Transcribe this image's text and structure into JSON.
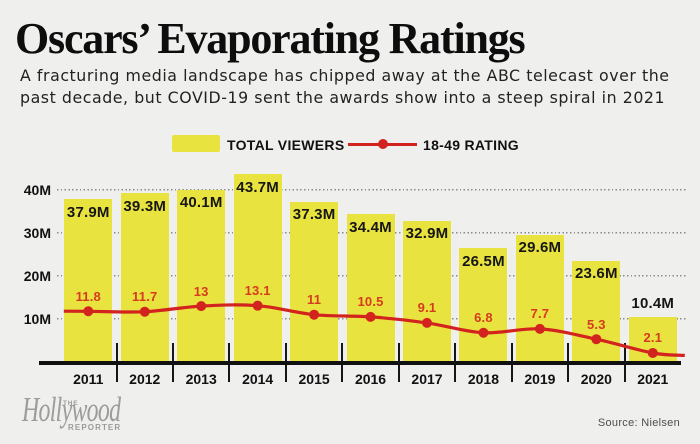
{
  "theme": {
    "background": "#efefee",
    "bar_color": "#e8e33e",
    "line_color": "#d2231e",
    "line_label_color": "#d63b1f",
    "text_color": "#111111",
    "grid_color": "#8f8f8f",
    "logo_color": "#9c9c9c"
  },
  "header": {
    "title": "Oscars’ Evaporating Ratings",
    "subtitle_line1": "A fracturing media landscape has chipped away at the ABC telecast over the",
    "subtitle_line2": "past decade, but COVID-19 sent the awards show into a steep spiral in 2021"
  },
  "legend": {
    "bars_label": "TOTAL VIEWERS",
    "line_label": "18-49 RATING"
  },
  "chart_data": {
    "type": "bar+line",
    "title": "Oscars’ Evaporating Ratings",
    "categories": [
      "2011",
      "2012",
      "2013",
      "2014",
      "2015",
      "2016",
      "2017",
      "2018",
      "2019",
      "2020",
      "2021"
    ],
    "series": [
      {
        "name": "TOTAL VIEWERS",
        "type": "bar",
        "unit": "M viewers",
        "values": [
          37.9,
          39.3,
          40.1,
          43.7,
          37.3,
          34.4,
          32.9,
          26.5,
          29.6,
          23.6,
          10.4
        ],
        "labels": [
          "37.9M",
          "39.3M",
          "40.1M",
          "43.7M",
          "37.3M",
          "34.4M",
          "32.9M",
          "26.5M",
          "29.6M",
          "23.6M",
          "10.4M"
        ]
      },
      {
        "name": "18-49 RATING",
        "type": "line",
        "values": [
          11.8,
          11.7,
          13,
          13.1,
          11,
          10.5,
          9.1,
          6.8,
          7.7,
          5.3,
          2.1
        ],
        "labels": [
          "11.8",
          "11.7",
          "13",
          "13.1",
          "11",
          "10.5",
          "9.1",
          "6.8",
          "7.7",
          "5.3",
          "2.1"
        ]
      }
    ],
    "yticks": [
      {
        "label": "10M",
        "value": 10
      },
      {
        "label": "20M",
        "value": 20
      },
      {
        "label": "30M",
        "value": 30
      },
      {
        "label": "40M",
        "value": 40
      }
    ],
    "ylim": [
      0,
      47
    ],
    "grid": "horizontal dotted",
    "legend_position": "top center"
  },
  "footer": {
    "source": "Source: Nielsen",
    "logo": {
      "the": "THE",
      "hollywood": "Hollywood",
      "reporter": "REPORTER"
    }
  }
}
